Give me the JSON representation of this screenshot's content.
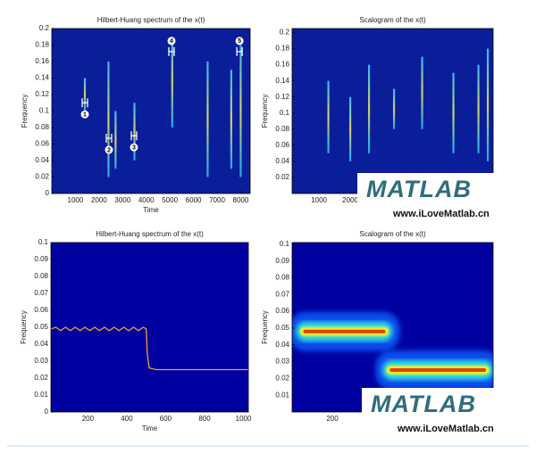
{
  "chart_data": [
    {
      "type": "spectrogram",
      "title": "Hilbert-Huang spectrum of the x(t)",
      "xlabel": "Time",
      "ylabel": "Frequency",
      "xlim": [
        0,
        8400
      ],
      "ylim": [
        0,
        0.2
      ],
      "xticks": [
        1000,
        2000,
        3000,
        4000,
        5000,
        6000,
        7000,
        8000
      ],
      "yticks": [
        0,
        0.02,
        0.04,
        0.06,
        0.08,
        0.1,
        0.12,
        0.14,
        0.16,
        0.18,
        0.2
      ],
      "ridges": [
        {
          "x": 1400,
          "y": [
            0.1,
            0.14
          ]
        },
        {
          "x": 2400,
          "y": [
            0.02,
            0.16
          ]
        },
        {
          "x": 2700,
          "y": [
            0.03,
            0.1
          ]
        },
        {
          "x": 3500,
          "y": [
            0.04,
            0.11
          ]
        },
        {
          "x": 5100,
          "y": [
            0.08,
            0.19
          ]
        },
        {
          "x": 6600,
          "y": [
            0.02,
            0.16
          ]
        },
        {
          "x": 7600,
          "y": [
            0.03,
            0.15
          ]
        },
        {
          "x": 8000,
          "y": [
            0.02,
            0.18
          ]
        }
      ],
      "annotations": [
        {
          "label": "1",
          "x": 1400,
          "y": 0.11,
          "label_side": "below"
        },
        {
          "label": "2",
          "x": 2420,
          "y": 0.067,
          "label_side": "below"
        },
        {
          "label": "3",
          "x": 3480,
          "y": 0.07,
          "label_side": "below"
        },
        {
          "label": "4",
          "x": 5070,
          "y": 0.172,
          "label_side": "above"
        },
        {
          "label": "5",
          "x": 7950,
          "y": 0.172,
          "label_side": "above"
        }
      ]
    },
    {
      "type": "spectrogram",
      "title": "Scalogram of the x(t)",
      "ylabel": "Frequency",
      "xlim": [
        140,
        6570
      ],
      "ylim": [
        0,
        0.205
      ],
      "xticks": [
        1000,
        2000
      ],
      "yticks": [
        0.02,
        0.04,
        0.06,
        0.08,
        0.1,
        0.12,
        0.14,
        0.16,
        0.18,
        0.2
      ],
      "ridges": [
        {
          "x": 1300,
          "y": [
            0.05,
            0.14
          ]
        },
        {
          "x": 2000,
          "y": [
            0.04,
            0.12
          ]
        },
        {
          "x": 2600,
          "y": [
            0.05,
            0.16
          ]
        },
        {
          "x": 3400,
          "y": [
            0.08,
            0.13
          ]
        },
        {
          "x": 4300,
          "y": [
            0.08,
            0.17
          ]
        },
        {
          "x": 5300,
          "y": [
            0.05,
            0.15
          ]
        },
        {
          "x": 6100,
          "y": [
            0.05,
            0.16
          ]
        },
        {
          "x": 6400,
          "y": [
            0.04,
            0.18
          ]
        }
      ]
    },
    {
      "type": "line",
      "title": "Hilbert-Huang spectrum of the x(t)",
      "xlabel": "Time",
      "ylabel": "Frequency",
      "xlim": [
        10,
        1025
      ],
      "ylim": [
        0,
        0.1
      ],
      "xticks": [
        200,
        400,
        600,
        800,
        1000
      ],
      "yticks": [
        0,
        0.01,
        0.02,
        0.03,
        0.04,
        0.05,
        0.06,
        0.07,
        0.08,
        0.09,
        0.1
      ],
      "color": "#f0a030",
      "x": [
        10,
        35,
        60,
        85,
        110,
        135,
        160,
        185,
        210,
        235,
        260,
        285,
        310,
        335,
        360,
        385,
        410,
        435,
        460,
        485,
        500,
        505,
        515,
        550,
        600,
        650,
        700,
        750,
        800,
        850,
        900,
        950,
        1000,
        1025
      ],
      "values": [
        0.049,
        0.05,
        0.048,
        0.05,
        0.048,
        0.05,
        0.048,
        0.05,
        0.048,
        0.05,
        0.048,
        0.05,
        0.048,
        0.05,
        0.048,
        0.05,
        0.048,
        0.05,
        0.048,
        0.05,
        0.049,
        0.035,
        0.026,
        0.025,
        0.025,
        0.025,
        0.025,
        0.025,
        0.025,
        0.025,
        0.025,
        0.025,
        0.025,
        0.025
      ]
    },
    {
      "type": "scalogram",
      "title": "Scalogram of the x(t)",
      "ylabel": "Frequency",
      "xlim": [
        0,
        1000
      ],
      "ylim": [
        0,
        0.101
      ],
      "xticks": [
        200
      ],
      "yticks": [
        0.01,
        0.02,
        0.03,
        0.04,
        0.05,
        0.06,
        0.07,
        0.08,
        0.09,
        0.1
      ],
      "bands": [
        {
          "x": [
            20,
            500
          ],
          "y": 0.048
        },
        {
          "x": [
            450,
            1000
          ],
          "y": 0.025
        }
      ]
    }
  ],
  "watermark": {
    "logo": "MATLAB",
    "url": "www.iLoveMatlab.cn"
  }
}
